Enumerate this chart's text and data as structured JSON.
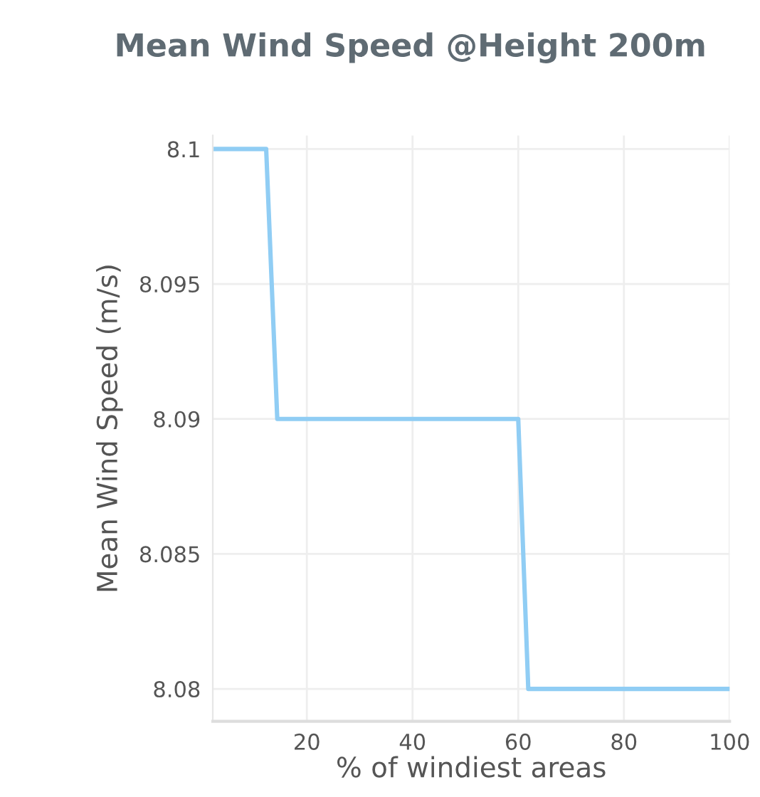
{
  "chart_data": {
    "type": "line",
    "title": "Mean Wind Speed @Height 200m",
    "xlabel": "% of windiest areas",
    "ylabel": "Mean Wind Speed (m/s)",
    "x": [
      2.2,
      12.3,
      14.4,
      60.0,
      61.9,
      100
    ],
    "series": [
      {
        "color": "#90cdf4",
        "values": [
          8.1,
          8.1,
          8.09,
          8.09,
          8.08,
          8.08
        ]
      }
    ],
    "xlim": [
      2.2,
      100
    ],
    "ylim": [
      8.0788,
      8.1005
    ],
    "xticks": [
      20,
      40,
      60,
      80,
      100
    ],
    "yticks": [
      8.08,
      8.085,
      8.09,
      8.095,
      8.1
    ],
    "grid": true,
    "marker": "none",
    "line_style": "solid"
  }
}
